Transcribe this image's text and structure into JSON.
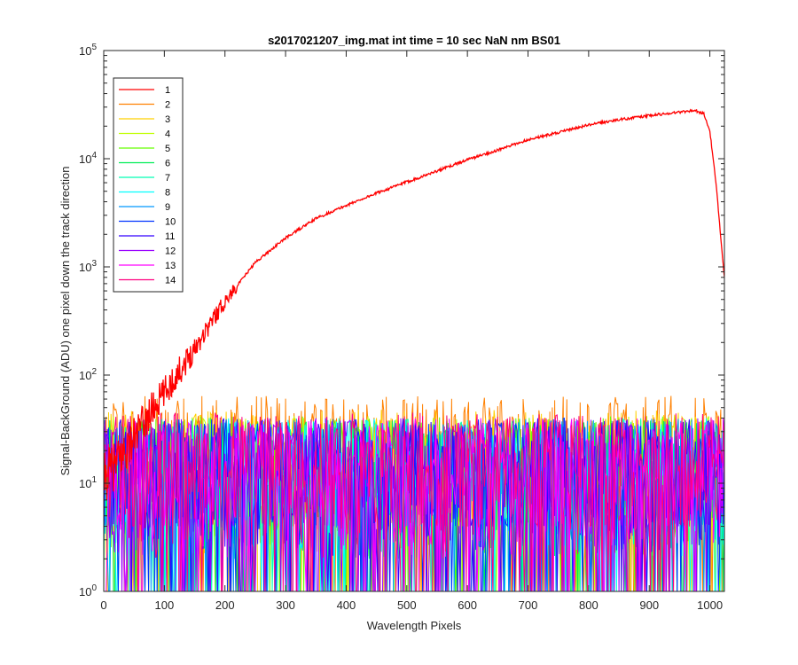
{
  "chart_data": {
    "type": "line",
    "title": "s2017021207_img.mat int time = 10 sec  NaN nm BS01",
    "xlabel": "Wavelength Pixels",
    "ylabel": "Signal-BackGround (ADU) one pixel down the track direction",
    "xlim": [
      0,
      1024
    ],
    "ylim": [
      1,
      100000
    ],
    "yscale": "log",
    "grid": false,
    "box": true,
    "legend_location": "top-left",
    "x_ticks": [
      "0",
      "100",
      "200",
      "300",
      "400",
      "500",
      "600",
      "700",
      "800",
      "900",
      "1000"
    ],
    "y_ticks": [
      {
        "base": "10",
        "exp": "0"
      },
      {
        "base": "10",
        "exp": "1"
      },
      {
        "base": "10",
        "exp": "2"
      },
      {
        "base": "10",
        "exp": "3"
      },
      {
        "base": "10",
        "exp": "4"
      },
      {
        "base": "10",
        "exp": "5"
      }
    ],
    "series": [
      {
        "name": "1",
        "color": "#ff0000",
        "x": [
          0,
          20,
          40,
          60,
          80,
          100,
          120,
          140,
          160,
          180,
          200,
          250,
          300,
          350,
          400,
          450,
          500,
          550,
          600,
          650,
          700,
          750,
          800,
          850,
          900,
          950,
          975,
          990,
          1000,
          1010,
          1024
        ],
        "y": [
          11,
          15,
          22,
          32,
          48,
          68,
          100,
          145,
          220,
          330,
          480,
          1100,
          1850,
          2800,
          3700,
          4800,
          6100,
          7700,
          9800,
          12000,
          15000,
          17500,
          20500,
          23000,
          25000,
          27000,
          28000,
          26000,
          18000,
          6000,
          800
        ]
      },
      {
        "name": "2",
        "color": "#ff8000",
        "noise": {
          "mean": 8,
          "max": 65
        }
      },
      {
        "name": "3",
        "color": "#ffd000",
        "noise": {
          "mean": 8,
          "max": 48
        }
      },
      {
        "name": "4",
        "color": "#c0ff00",
        "noise": {
          "mean": 8,
          "max": 42
        }
      },
      {
        "name": "5",
        "color": "#66ff00",
        "noise": {
          "mean": 8,
          "max": 42
        }
      },
      {
        "name": "6",
        "color": "#00ee55",
        "noise": {
          "mean": 8,
          "max": 40
        }
      },
      {
        "name": "7",
        "color": "#00ffb3",
        "noise": {
          "mean": 8,
          "max": 40
        }
      },
      {
        "name": "8",
        "color": "#00ffff",
        "noise": {
          "mean": 8,
          "max": 40
        }
      },
      {
        "name": "9",
        "color": "#0099ff",
        "noise": {
          "mean": 8,
          "max": 40
        }
      },
      {
        "name": "10",
        "color": "#0033ff",
        "noise": {
          "mean": 8,
          "max": 40
        }
      },
      {
        "name": "11",
        "color": "#3300ff",
        "noise": {
          "mean": 8,
          "max": 40
        }
      },
      {
        "name": "12",
        "color": "#9900ff",
        "noise": {
          "mean": 8,
          "max": 40
        }
      },
      {
        "name": "13",
        "color": "#ff00ff",
        "noise": {
          "mean": 8,
          "max": 40
        }
      },
      {
        "name": "14",
        "color": "#ff0080",
        "noise": {
          "mean": 8,
          "max": 45
        }
      }
    ]
  }
}
